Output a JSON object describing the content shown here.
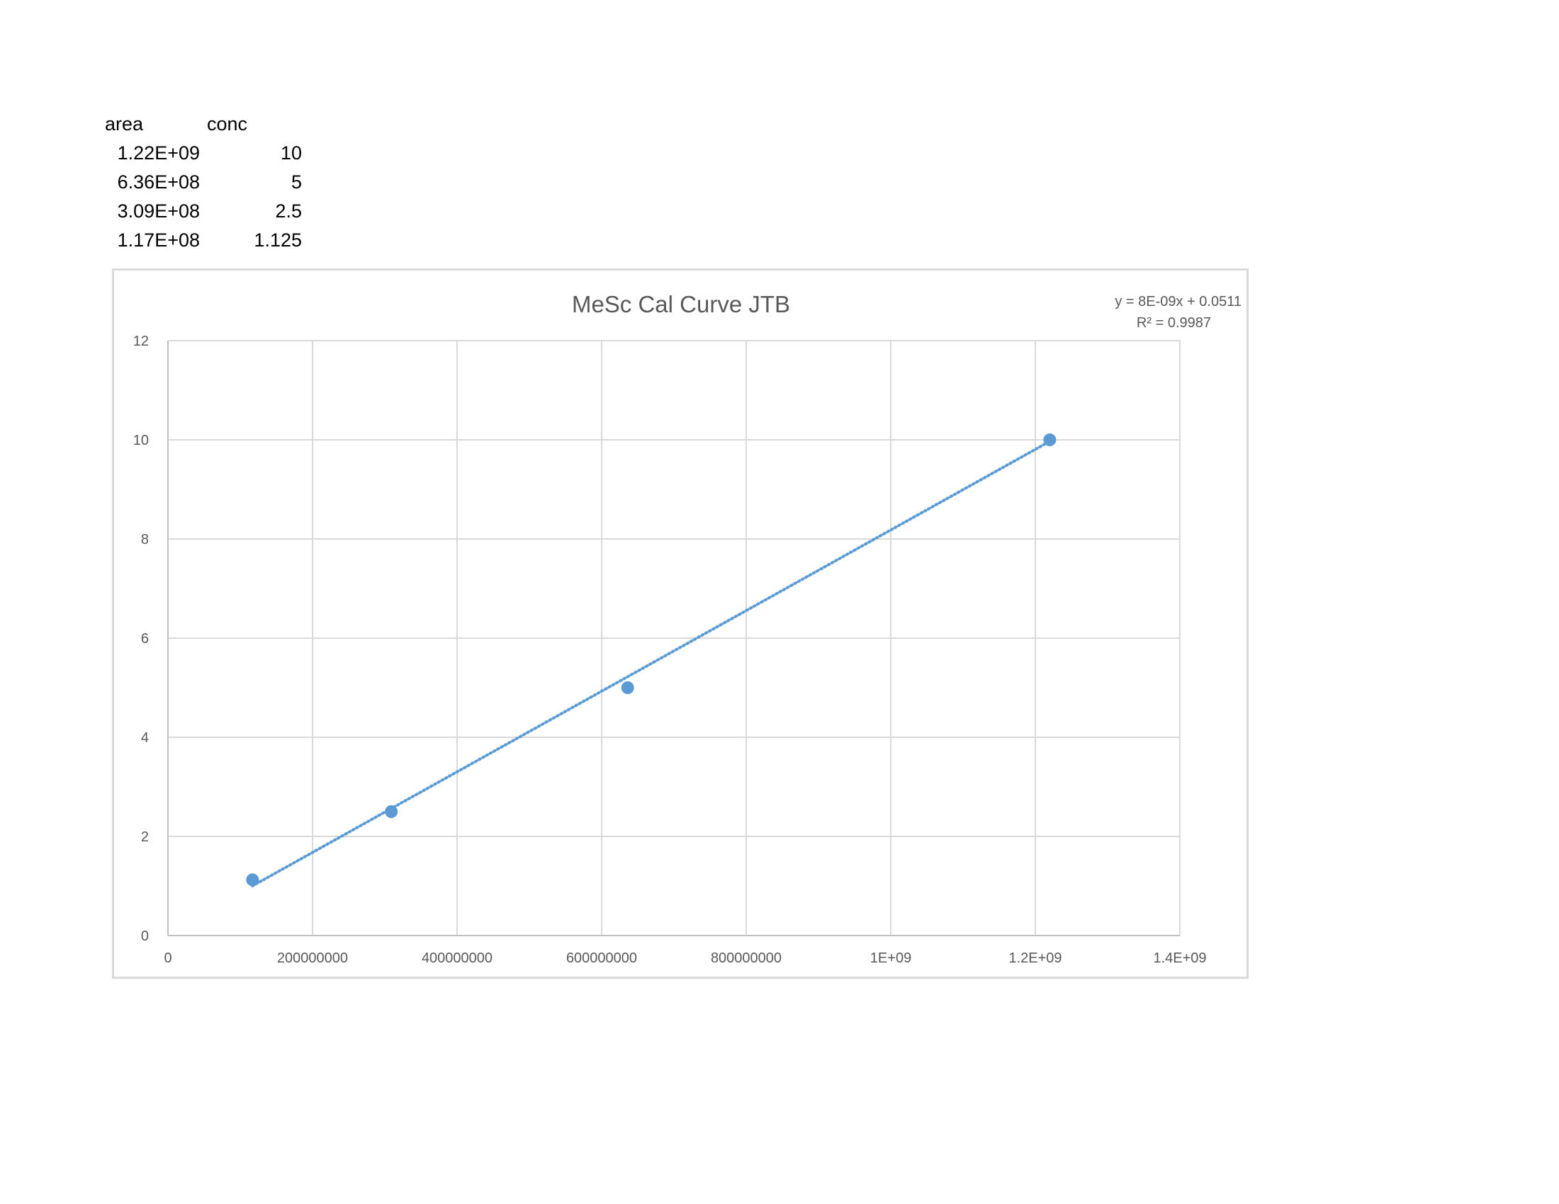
{
  "table": {
    "headers": [
      "area",
      "conc"
    ],
    "rows": [
      [
        "1.22E+09",
        "10"
      ],
      [
        "6.36E+08",
        "5"
      ],
      [
        "3.09E+08",
        "2.5"
      ],
      [
        "1.17E+08",
        "1.125"
      ]
    ]
  },
  "chart_data": {
    "type": "scatter",
    "title": "MeSc Cal Curve JTB",
    "xlabel": "",
    "ylabel": "",
    "xlim": [
      0,
      1400000000
    ],
    "ylim": [
      0,
      12
    ],
    "x_ticks": [
      0,
      200000000,
      400000000,
      600000000,
      800000000,
      1000000000,
      1200000000,
      1400000000
    ],
    "x_tick_labels": [
      "0",
      "200000000",
      "400000000",
      "600000000",
      "800000000",
      "1E+09",
      "1.2E+09",
      "1.4E+09"
    ],
    "y_ticks": [
      0,
      2,
      4,
      6,
      8,
      10,
      12
    ],
    "y_tick_labels": [
      "0",
      "2",
      "4",
      "6",
      "8",
      "10",
      "12"
    ],
    "grid": true,
    "series": [
      {
        "x": [
          1220000000,
          636000000,
          309000000,
          117000000
        ],
        "y": [
          10,
          5,
          2.5,
          1.125
        ],
        "color": "#5b9bd5"
      }
    ],
    "trendline": {
      "type": "linear",
      "slope": 8.13e-09,
      "intercept": 0.0511,
      "equation_label": "y = 8E-09x + 0.0511",
      "r2_label": "R² = 0.9987",
      "color": "#5b9bd5"
    },
    "colors": {
      "series": "#5b9bd5",
      "grid": "#d9d9d9",
      "text": "#595959"
    }
  }
}
